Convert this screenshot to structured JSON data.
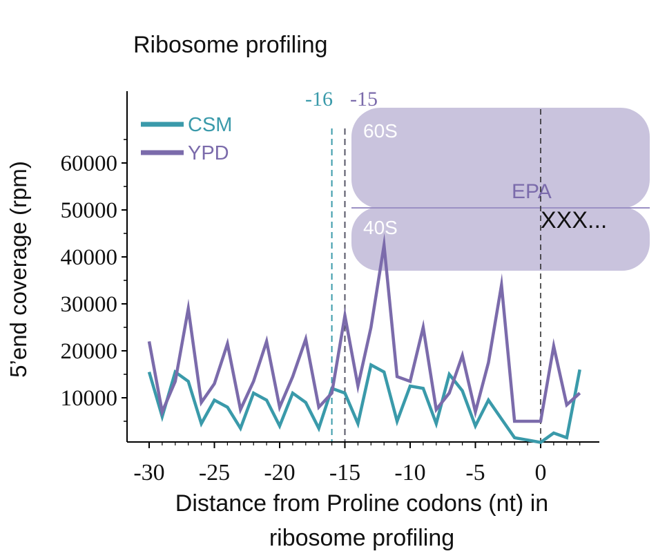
{
  "chart_data": {
    "type": "line",
    "title": "Ribosome profiling",
    "xlabel_line1": "Distance from Proline codons (nt) in",
    "xlabel_line2": "ribosome profiling",
    "ylabel": "5’end coverage  (rpm)",
    "xlim": [
      -31,
      4
    ],
    "ylim": [
      0,
      73000
    ],
    "x_ticks": [
      -30,
      -25,
      -20,
      -15,
      -10,
      -5,
      0
    ],
    "x_tick_labels": [
      "-30",
      "-25",
      "-20",
      "-15",
      "-10",
      "-5",
      "0"
    ],
    "y_ticks": [
      10000,
      20000,
      30000,
      40000,
      50000,
      60000
    ],
    "y_tick_labels": [
      "10000",
      "20000",
      "30000",
      "40000",
      "50000",
      "60000"
    ],
    "x": [
      -30,
      -29,
      -28,
      -27,
      -26,
      -25,
      -24,
      -23,
      -22,
      -21,
      -20,
      -19,
      -18,
      -17,
      -16,
      -15,
      -14,
      -13,
      -12,
      -11,
      -10,
      -9,
      -8,
      -7,
      -6,
      -5,
      -4,
      -3,
      -2,
      -1,
      0,
      1,
      2,
      3
    ],
    "series": [
      {
        "name": "CSM",
        "color": "#3a9aaa",
        "values": [
          15500,
          6000,
          15500,
          13500,
          4500,
          9500,
          8000,
          3500,
          11000,
          9500,
          4000,
          11000,
          9000,
          3500,
          12000,
          11000,
          4500,
          17000,
          15500,
          5000,
          12500,
          12000,
          4500,
          15000,
          11500,
          4000,
          9500,
          5500,
          1500,
          1000,
          500,
          2500,
          1500,
          16000
        ]
      },
      {
        "name": "YPD",
        "color": "#7b6bab",
        "values": [
          22000,
          7000,
          13500,
          29000,
          9000,
          13000,
          21500,
          7500,
          13500,
          22000,
          8000,
          14500,
          22500,
          8000,
          11000,
          27500,
          12500,
          25000,
          42500,
          14500,
          13500,
          25000,
          7500,
          11000,
          19000,
          7000,
          17500,
          34000,
          5000,
          5000,
          5000,
          21000,
          8500,
          11000
        ]
      }
    ],
    "legend_position": "top-left",
    "grid": false,
    "annotations": {
      "marker_minus16": "-16",
      "marker_minus15": "-15",
      "subunit_60s": "60S",
      "subunit_40s": "40S",
      "sites": "EPA",
      "codons": "XXX..."
    },
    "colors": {
      "csm": "#3a9aaa",
      "ypd": "#7b6bab",
      "ribosome_fill": "#c9c3dd",
      "axis": "#000000"
    }
  }
}
